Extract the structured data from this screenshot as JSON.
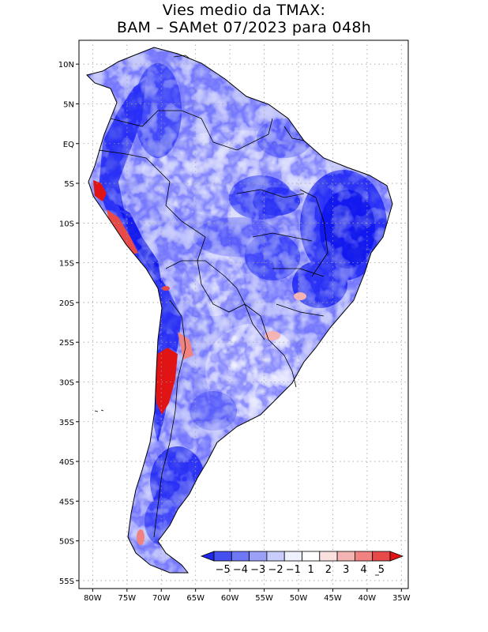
{
  "title": {
    "line1": "Vies medio da TMAX:",
    "line2": "BAM – SAMet 07/2023  para 048h"
  },
  "axes": {
    "lat_labels": [
      "10N",
      "5N",
      "EQ",
      "5S",
      "10S",
      "15S",
      "20S",
      "25S",
      "30S",
      "35S",
      "40S",
      "45S",
      "50S",
      "55S"
    ],
    "lat_values": [
      10,
      5,
      0,
      -5,
      -10,
      -15,
      -20,
      -25,
      -30,
      -35,
      -40,
      -45,
      -50,
      -55
    ],
    "lon_labels": [
      "80W",
      "75W",
      "70W",
      "65W",
      "60W",
      "55W",
      "50W",
      "45W",
      "40W",
      "35W"
    ],
    "lon_values": [
      -80,
      -75,
      -70,
      -65,
      -60,
      -55,
      -50,
      -45,
      -40,
      -35
    ],
    "extent": {
      "lon_min": -82,
      "lon_max": -34,
      "lat_min": -56,
      "lat_max": 13
    }
  },
  "colorbar": {
    "labels": [
      "−5",
      "−4",
      "−3",
      "−2",
      "−1",
      "1",
      "2",
      "3",
      "4",
      "5"
    ],
    "colors": [
      "#1e28e6",
      "#4650f0",
      "#6e78f5",
      "#9aa0f8",
      "#c8ccfb",
      "#eef0fe",
      "#ffffff",
      "#fbe0e0",
      "#f5b4b4",
      "#f08282",
      "#e84a4a",
      "#e01414"
    ]
  },
  "colors": {
    "ocean": "#ffffff",
    "land_neutral": "#eef0fe",
    "grid": "#a0a0a0",
    "coast": "#000000"
  }
}
